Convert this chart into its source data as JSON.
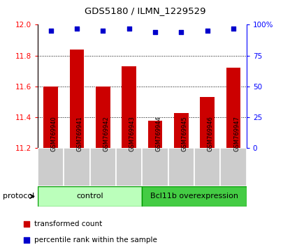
{
  "title": "GDS5180 / ILMN_1229529",
  "samples": [
    "GSM769940",
    "GSM769941",
    "GSM769942",
    "GSM769943",
    "GSM769944",
    "GSM769945",
    "GSM769946",
    "GSM769947"
  ],
  "transformed_counts": [
    11.6,
    11.84,
    11.6,
    11.73,
    11.38,
    11.43,
    11.53,
    11.72
  ],
  "percentile_ranks": [
    95,
    97,
    95,
    97,
    94,
    94,
    95,
    97
  ],
  "ylim_left": [
    11.2,
    12.0
  ],
  "yticks_left": [
    11.2,
    11.4,
    11.6,
    11.8,
    12.0
  ],
  "yticks_right": [
    0,
    25,
    50,
    75,
    100
  ],
  "ytick_labels_right": [
    "0",
    "25",
    "50",
    "75",
    "100%"
  ],
  "bar_color": "#CC0000",
  "dot_color": "#0000CC",
  "ctrl_color": "#BBFFBB",
  "bcl_color": "#44CC44",
  "border_color": "#009900",
  "sample_box_color": "#CCCCCC",
  "protocol_label": "protocol",
  "control_label": "control",
  "bcl_label": "Bcl11b overexpression",
  "legend_red_label": "transformed count",
  "legend_blue_label": "percentile rank within the sample"
}
